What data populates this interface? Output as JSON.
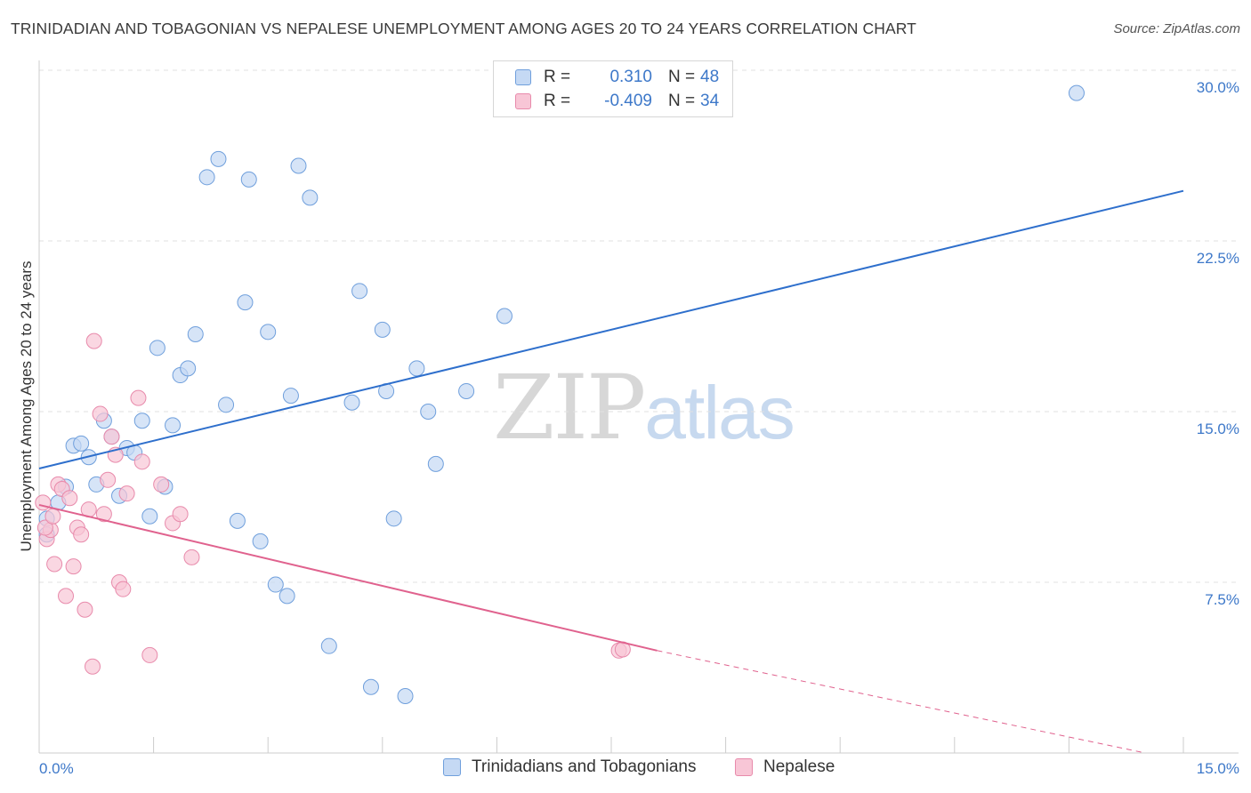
{
  "title": "TRINIDADIAN AND TOBAGONIAN VS NEPALESE UNEMPLOYMENT AMONG AGES 20 TO 24 YEARS CORRELATION CHART",
  "source": "Source: ZipAtlas.com",
  "watermark": {
    "zip": "ZIP",
    "atlas": "atlas"
  },
  "legend": {
    "series1": {
      "r_label": "R =",
      "r_value": "0.310",
      "n_label": "N =",
      "n_value": "48"
    },
    "series2": {
      "r_label": "R =",
      "r_value": "-0.409",
      "n_label": "N =",
      "n_value": "34"
    }
  },
  "colors": {
    "blue_fill": "#c5d9f4",
    "blue_stroke": "#6f9fdc",
    "blue_line": "#2e6fcc",
    "pink_fill": "#f8c6d6",
    "pink_stroke": "#e88aab",
    "pink_line": "#e0628e",
    "axis_text": "#3d78c9",
    "grid": "#e1e1e1"
  },
  "chart_data": {
    "type": "scatter",
    "ylabel": "Unemployment Among Ages 20 to 24 years",
    "xlim": [
      0,
      15
    ],
    "ylim": [
      0,
      30
    ],
    "x_tick_labels": [
      "0.0%",
      "15.0%"
    ],
    "y_ticks": [
      7.5,
      15.0,
      22.5,
      30.0
    ],
    "y_tick_labels": [
      "7.5%",
      "15.0%",
      "22.5%",
      "30.0%"
    ],
    "grid": true,
    "series": [
      {
        "name": "Trinidadians and Tobagonians",
        "color": "#6f9fdc",
        "points": [
          [
            0.1,
            10.3
          ],
          [
            0.1,
            9.6
          ],
          [
            0.25,
            11.0
          ],
          [
            0.35,
            11.7
          ],
          [
            0.45,
            13.5
          ],
          [
            0.55,
            13.6
          ],
          [
            0.65,
            13.0
          ],
          [
            0.75,
            11.8
          ],
          [
            0.85,
            14.6
          ],
          [
            0.95,
            13.9
          ],
          [
            1.05,
            11.3
          ],
          [
            1.15,
            13.4
          ],
          [
            1.25,
            13.2
          ],
          [
            1.35,
            14.6
          ],
          [
            1.45,
            10.4
          ],
          [
            1.55,
            17.8
          ],
          [
            1.65,
            11.7
          ],
          [
            1.75,
            14.4
          ],
          [
            1.85,
            16.6
          ],
          [
            1.95,
            16.9
          ],
          [
            2.05,
            18.4
          ],
          [
            2.2,
            25.3
          ],
          [
            2.35,
            26.1
          ],
          [
            2.45,
            15.3
          ],
          [
            2.6,
            10.2
          ],
          [
            2.7,
            19.8
          ],
          [
            2.75,
            25.2
          ],
          [
            2.9,
            9.3
          ],
          [
            3.0,
            18.5
          ],
          [
            3.1,
            7.4
          ],
          [
            3.25,
            6.9
          ],
          [
            3.3,
            15.7
          ],
          [
            3.4,
            25.8
          ],
          [
            3.55,
            24.4
          ],
          [
            3.8,
            4.7
          ],
          [
            4.1,
            15.4
          ],
          [
            4.2,
            20.3
          ],
          [
            4.35,
            2.9
          ],
          [
            4.5,
            18.6
          ],
          [
            4.55,
            15.9
          ],
          [
            4.65,
            10.3
          ],
          [
            4.8,
            2.5
          ],
          [
            4.95,
            16.9
          ],
          [
            5.1,
            15.0
          ],
          [
            5.2,
            12.7
          ],
          [
            5.6,
            15.9
          ],
          [
            6.1,
            19.2
          ],
          [
            13.6,
            29.0
          ]
        ]
      },
      {
        "name": "Nepalese",
        "color": "#e88aab",
        "points": [
          [
            0.05,
            11.0
          ],
          [
            0.1,
            9.4
          ],
          [
            0.15,
            9.8
          ],
          [
            0.2,
            8.3
          ],
          [
            0.25,
            11.8
          ],
          [
            0.3,
            11.6
          ],
          [
            0.35,
            6.9
          ],
          [
            0.4,
            11.2
          ],
          [
            0.45,
            8.2
          ],
          [
            0.5,
            9.9
          ],
          [
            0.55,
            9.6
          ],
          [
            0.6,
            6.3
          ],
          [
            0.65,
            10.7
          ],
          [
            0.7,
            3.8
          ],
          [
            0.72,
            18.1
          ],
          [
            0.8,
            14.9
          ],
          [
            0.85,
            10.5
          ],
          [
            0.9,
            12.0
          ],
          [
            0.95,
            13.9
          ],
          [
            1.0,
            13.1
          ],
          [
            1.05,
            7.5
          ],
          [
            1.1,
            7.2
          ],
          [
            1.15,
            11.4
          ],
          [
            1.3,
            15.6
          ],
          [
            1.35,
            12.8
          ],
          [
            1.45,
            4.3
          ],
          [
            1.6,
            11.8
          ],
          [
            1.75,
            10.1
          ],
          [
            1.85,
            10.5
          ],
          [
            2.0,
            8.6
          ],
          [
            7.6,
            4.5
          ],
          [
            7.65,
            4.55
          ],
          [
            0.08,
            9.9
          ],
          [
            0.18,
            10.4
          ]
        ]
      }
    ],
    "trend_lines": [
      {
        "series": "Trinidadians and Tobagonians",
        "x": [
          0,
          15
        ],
        "y": [
          12.5,
          24.7
        ]
      },
      {
        "series": "Nepalese",
        "x": [
          0,
          8.1
        ],
        "y": [
          10.9,
          4.5
        ],
        "dashed_extension": {
          "x": [
            8.1,
            14.5
          ],
          "y": [
            4.5,
            0.0
          ]
        }
      }
    ]
  }
}
